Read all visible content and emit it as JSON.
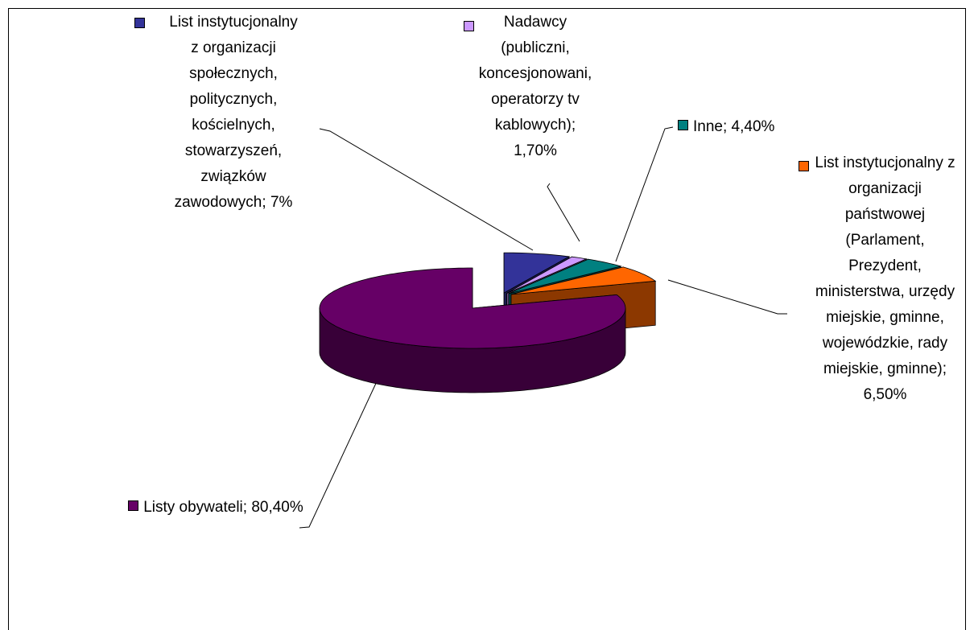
{
  "chart_data": {
    "type": "pie3d",
    "categories": [
      "List instytucjonalny z organizacji społecznych, politycznych, kościelnych, stowarzyszeń, związków zawodowych",
      "Nadawcy (publiczni, koncesjonowani, operatorzy tv kablowych)",
      "Inne",
      "List instytucjonalny z organizacji państwowej (Parlament, Prezydent, ministerstwa, urzędy miejskie, gminne, wojewódzkie, rady miejskie, gminne)",
      "Listy obywateli"
    ],
    "values": [
      7,
      1.7,
      4.4,
      6.5,
      80.4
    ],
    "value_labels": [
      "7%",
      "1,70%",
      "4,40%",
      "6,50%",
      "80,40%"
    ],
    "label_separator": "; ",
    "colors": [
      "#333399",
      "#cc99ff",
      "#008080",
      "#ff6600",
      "#660066"
    ]
  }
}
